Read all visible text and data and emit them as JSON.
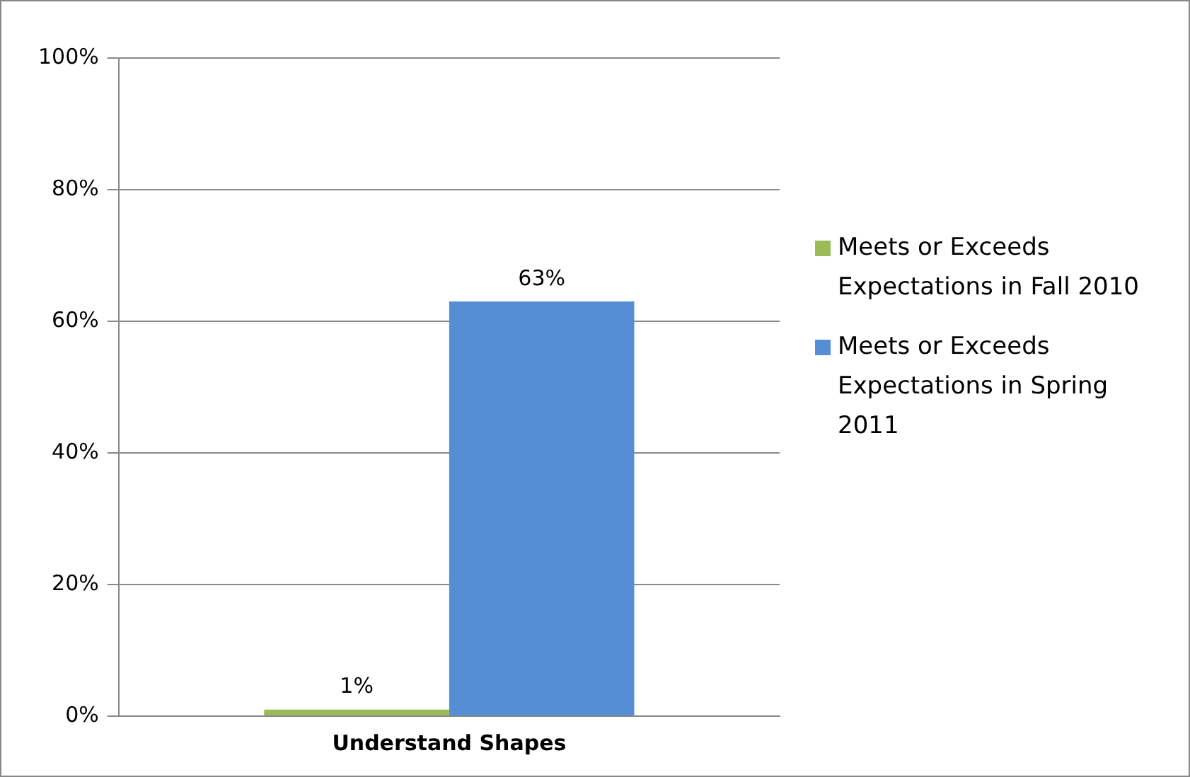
{
  "chart_data": {
    "type": "bar",
    "categories": [
      "Understand Shapes"
    ],
    "series": [
      {
        "name": "Meets or Exceeds Expectations in Fall 2010",
        "color": "#9bbb59",
        "values": [
          1
        ]
      },
      {
        "name": "Meets or Exceeds Expectations in Spring 2011",
        "color": "#558ed5",
        "values": [
          63
        ]
      }
    ],
    "ylim": [
      0,
      100
    ],
    "yticks": [
      {
        "value": 0,
        "label": "0%"
      },
      {
        "value": 20,
        "label": "20%"
      },
      {
        "value": 40,
        "label": "40%"
      },
      {
        "value": 60,
        "label": "60%"
      },
      {
        "value": 80,
        "label": "80%"
      },
      {
        "value": 100,
        "label": "100%"
      }
    ],
    "value_labels": [
      [
        "1%"
      ],
      [
        "63%"
      ]
    ],
    "grid": "y",
    "legend": "right"
  }
}
